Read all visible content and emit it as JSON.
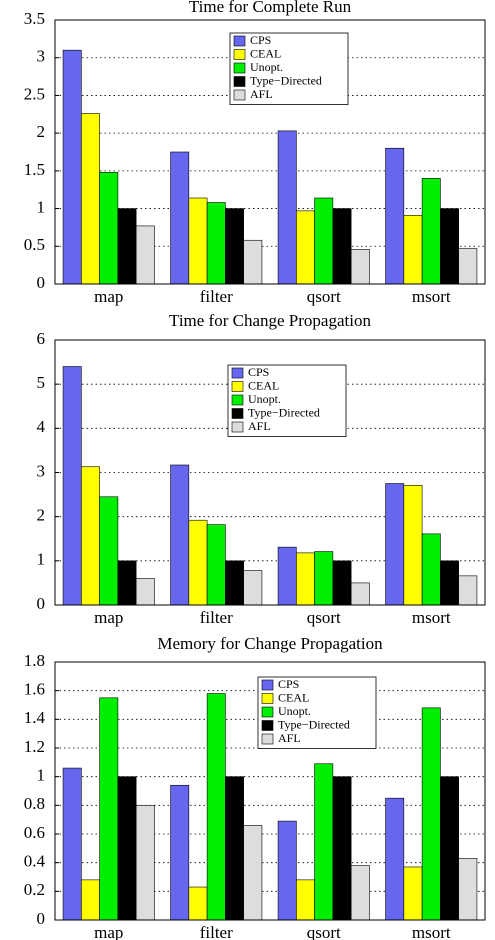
{
  "chart_data": [
    {
      "type": "bar",
      "title": "Time for Complete Run",
      "categories": [
        "map",
        "filter",
        "qsort",
        "msort"
      ],
      "series": [
        {
          "name": "CPS",
          "color": "#6666ee",
          "values": [
            3.1,
            1.75,
            2.03,
            1.8
          ]
        },
        {
          "name": "CEAL",
          "color": "#ffff00",
          "values": [
            2.26,
            1.14,
            0.97,
            0.91
          ]
        },
        {
          "name": "Unopt.",
          "color": "#00ee00",
          "values": [
            1.48,
            1.08,
            1.14,
            1.4
          ]
        },
        {
          "name": "Type−Directed",
          "color": "#000000",
          "values": [
            1.0,
            1.0,
            1.0,
            1.0
          ]
        },
        {
          "name": "AFL",
          "color": "#dddddd",
          "values": [
            0.77,
            0.58,
            0.46,
            0.47
          ]
        }
      ],
      "ylim": [
        0,
        3.5
      ],
      "yticks": [
        0,
        0.5,
        1,
        1.5,
        2,
        2.5,
        3,
        3.5
      ],
      "grid": true
    },
    {
      "type": "bar",
      "title": "Time for Change Propagation",
      "categories": [
        "map",
        "filter",
        "qsort",
        "msort"
      ],
      "series": [
        {
          "name": "CPS",
          "color": "#6666ee",
          "values": [
            5.4,
            3.17,
            1.31,
            2.75
          ]
        },
        {
          "name": "CEAL",
          "color": "#ffff00",
          "values": [
            3.13,
            1.92,
            1.18,
            2.71
          ]
        },
        {
          "name": "Unopt.",
          "color": "#00ee00",
          "values": [
            2.45,
            1.82,
            1.21,
            1.61
          ]
        },
        {
          "name": "Type−Directed",
          "color": "#000000",
          "values": [
            1.0,
            1.0,
            1.0,
            1.0
          ]
        },
        {
          "name": "AFL",
          "color": "#dddddd",
          "values": [
            0.6,
            0.78,
            0.5,
            0.66
          ]
        }
      ],
      "ylim": [
        0,
        6
      ],
      "yticks": [
        0,
        1,
        2,
        3,
        4,
        5,
        6
      ],
      "grid": true
    },
    {
      "type": "bar",
      "title": "Memory for Change Propagation",
      "categories": [
        "map",
        "filter",
        "qsort",
        "msort"
      ],
      "series": [
        {
          "name": "CPS",
          "color": "#6666ee",
          "values": [
            1.06,
            0.94,
            0.69,
            0.85
          ]
        },
        {
          "name": "CEAL",
          "color": "#ffff00",
          "values": [
            0.28,
            0.23,
            0.28,
            0.37
          ]
        },
        {
          "name": "Unopt.",
          "color": "#00ee00",
          "values": [
            1.55,
            1.58,
            1.09,
            1.48
          ]
        },
        {
          "name": "Type−Directed",
          "color": "#000000",
          "values": [
            1.0,
            1.0,
            1.0,
            1.0
          ]
        },
        {
          "name": "AFL",
          "color": "#dddddd",
          "values": [
            0.8,
            0.66,
            0.38,
            0.43
          ]
        }
      ],
      "ylim": [
        0,
        1.8
      ],
      "yticks": [
        0,
        0.2,
        0.4,
        0.6,
        0.8,
        1,
        1.2,
        1.4,
        1.6,
        1.8
      ],
      "grid": true
    }
  ]
}
